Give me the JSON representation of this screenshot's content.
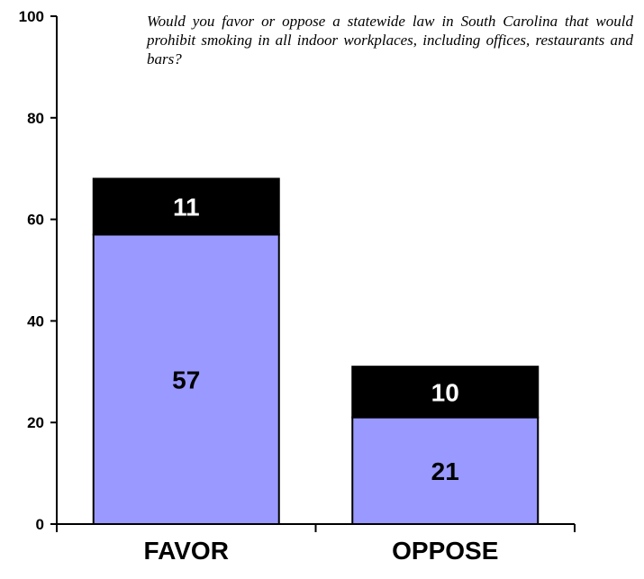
{
  "question": "Would you favor or oppose a statewide law in South Carolina that would prohibit smoking in all indoor workplaces, including offices, restaurants and bars?",
  "chart_data": {
    "type": "bar",
    "stacked": true,
    "categories": [
      "FAVOR",
      "OPPOSE"
    ],
    "series": [
      {
        "values": [
          57,
          21
        ],
        "color": "#9999ff",
        "label_color": "#000000"
      },
      {
        "values": [
          11,
          10
        ],
        "color": "#000000",
        "label_color": "#ffffff"
      }
    ],
    "yticks": [
      "0",
      "20",
      "40",
      "60",
      "80",
      "100"
    ],
    "ylim": [
      0,
      100
    ],
    "grid": false,
    "legend": "none"
  }
}
